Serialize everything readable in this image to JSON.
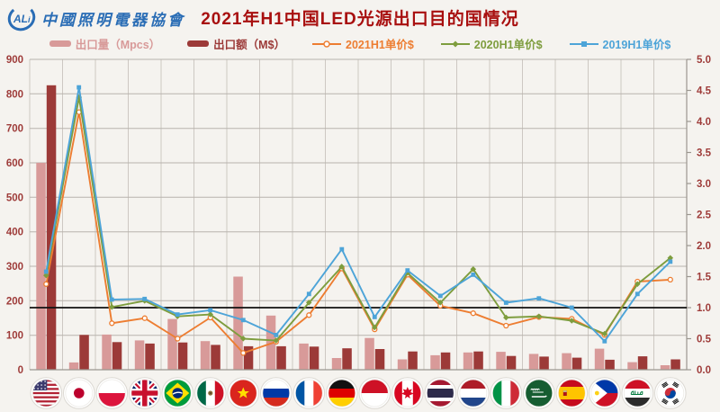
{
  "header": {
    "logo_mark": "CALi",
    "logo_cn": "中國照明電器協會",
    "title": "2021年H1中国LED光源出口目的国情况"
  },
  "legend": [
    {
      "label": "出口量（Mpcs）",
      "marker": "bar",
      "color": "#d89a99"
    },
    {
      "label": "出口额（M$）",
      "marker": "bar",
      "color": "#9c3a38"
    },
    {
      "label": "2021H1单价$",
      "marker": "line-circle",
      "color": "#ed7d31"
    },
    {
      "label": "2020H1单价$",
      "marker": "line-diamond",
      "color": "#7e9d3e"
    },
    {
      "label": "2019H1单价$",
      "marker": "line-square",
      "color": "#4da4d8"
    }
  ],
  "axes": {
    "left_ticks": [
      "900",
      "800",
      "700",
      "600",
      "500",
      "400",
      "300",
      "200",
      "100",
      "0"
    ],
    "right_ticks": [
      "5.0",
      "4.5",
      "4.0",
      "3.5",
      "3.0",
      "2.5",
      "2.0",
      "1.5",
      "1.0",
      "0.5",
      "0.0"
    ]
  },
  "chart_data": {
    "type": "bar+line-combo",
    "title": "2021年H1中国LED光源出口目的国情况",
    "categories": [
      {
        "name": "United States",
        "code": "us"
      },
      {
        "name": "Japan",
        "code": "jp"
      },
      {
        "name": "Poland",
        "code": "pl"
      },
      {
        "name": "United Kingdom",
        "code": "gb"
      },
      {
        "name": "Brazil",
        "code": "br"
      },
      {
        "name": "Mexico",
        "code": "mx"
      },
      {
        "name": "Vietnam",
        "code": "vn"
      },
      {
        "name": "Russia",
        "code": "ru"
      },
      {
        "name": "France",
        "code": "fr"
      },
      {
        "name": "Germany",
        "code": "de"
      },
      {
        "name": "Indonesia",
        "code": "id"
      },
      {
        "name": "Canada",
        "code": "ca"
      },
      {
        "name": "Thailand",
        "code": "th"
      },
      {
        "name": "Netherlands",
        "code": "nl"
      },
      {
        "name": "Italy",
        "code": "it"
      },
      {
        "name": "Saudi Arabia",
        "code": "sa"
      },
      {
        "name": "Spain",
        "code": "es"
      },
      {
        "name": "Philippines",
        "code": "ph"
      },
      {
        "name": "Iraq",
        "code": "iq"
      },
      {
        "name": "South Korea",
        "code": "kr"
      }
    ],
    "bar_series": [
      {
        "name": "出口量（Mpcs）",
        "axis": "left",
        "color": "#d89a99",
        "values": [
          600,
          21,
          102,
          85,
          147,
          83,
          270,
          157,
          76,
          34,
          92,
          30,
          42,
          50,
          52,
          46,
          48,
          61,
          22,
          13
        ]
      },
      {
        "name": "出口额（M$）",
        "axis": "left",
        "color": "#9c3a38",
        "values": [
          825,
          101,
          80,
          76,
          79,
          72,
          68,
          68,
          67,
          62,
          60,
          53,
          50,
          53,
          40,
          38,
          35,
          29,
          39,
          30
        ]
      }
    ],
    "line_series": [
      {
        "name": "2021H1单价$",
        "axis": "right",
        "color": "#ed7d31",
        "marker": "circle",
        "values": [
          1.38,
          4.15,
          0.75,
          0.83,
          0.5,
          0.84,
          0.27,
          0.45,
          0.88,
          1.63,
          0.65,
          1.53,
          1.03,
          0.91,
          0.71,
          0.85,
          0.82,
          0.56,
          1.42,
          1.45
        ]
      },
      {
        "name": "2020H1单价$",
        "axis": "right",
        "color": "#7e9d3e",
        "marker": "diamond",
        "values": [
          1.52,
          4.39,
          1.01,
          1.11,
          0.86,
          0.89,
          0.5,
          0.47,
          1.08,
          1.66,
          0.68,
          1.56,
          1.08,
          1.62,
          0.84,
          0.86,
          0.79,
          0.58,
          1.38,
          1.8
        ]
      },
      {
        "name": "2019H1单价$",
        "axis": "right",
        "color": "#4da4d8",
        "marker": "square",
        "values": [
          1.58,
          4.55,
          1.13,
          1.14,
          0.89,
          0.96,
          0.8,
          0.56,
          1.22,
          1.94,
          0.85,
          1.6,
          1.19,
          1.53,
          1.08,
          1.15,
          1.0,
          0.46,
          1.22,
          1.74
        ]
      }
    ],
    "left_axis": {
      "min": 0,
      "max": 900,
      "step": 100,
      "label_color": "#9e3b39"
    },
    "right_axis": {
      "min": 0,
      "max": 5,
      "step": 0.5,
      "label_color": "#9e3b39"
    },
    "reference_line": {
      "axis": "right",
      "value": 1.0,
      "color": "#111111"
    },
    "grid": true,
    "legend_position": "top"
  }
}
